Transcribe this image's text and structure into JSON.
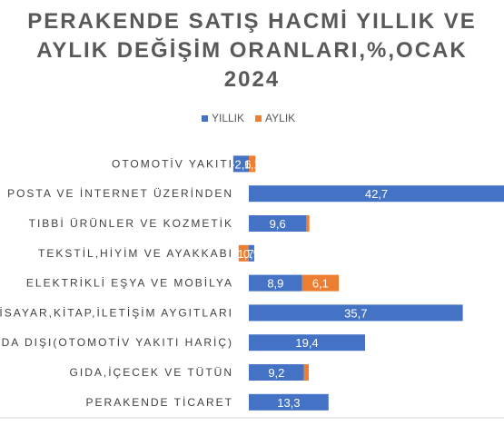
{
  "chart_data": {
    "type": "bar",
    "orientation": "horizontal",
    "stacked": true,
    "title": [
      "PERAKENDE SATIŞ HACMİ YILLIK VE",
      "AYLIK DEĞİŞİM ORANLARI,%,OCAK",
      "2024"
    ],
    "legend_position": "top",
    "categories": [
      "OTOMOTİV YAKITI",
      "POSTA VE İNTERNET ÜZERİNDEN",
      "TIBBİ ÜRÜNLER VE KOZMETİK",
      "TEKSTİL,HİYİM VE AYAKKABI",
      "ELEKTRİKLİ EŞYA VE MOBİLYA",
      "BİLGİSAYAR,KİTAP,İLETİŞİM AYGITLARI",
      "GIDA DIŞI(OTOMOTİV YAKITI HARİÇ)",
      "GIDA,İÇECEK VE TÜTÜN",
      "PERAKENDE TİCARET"
    ],
    "series": [
      {
        "name": "YILLIK",
        "color": "#4472C4",
        "values": [
          -2.6,
          42.7,
          9.6,
          0.9,
          8.9,
          35.7,
          19.4,
          9.2,
          13.3
        ],
        "labels": [
          "-2,6",
          "42,7",
          "9,6",
          "0,9",
          "8,9",
          "35,7",
          "19,4",
          "9,2",
          "13,3"
        ]
      },
      {
        "name": "AYLIK",
        "color": "#ED7D31",
        "values": [
          1.1,
          null,
          0.5,
          -1.7,
          6.1,
          null,
          null,
          0.8,
          null
        ],
        "labels": [
          "1,1",
          "",
          "",
          "-1,7",
          "6,1",
          "",
          "",
          "",
          ""
        ]
      }
    ],
    "gridlines": false
  }
}
